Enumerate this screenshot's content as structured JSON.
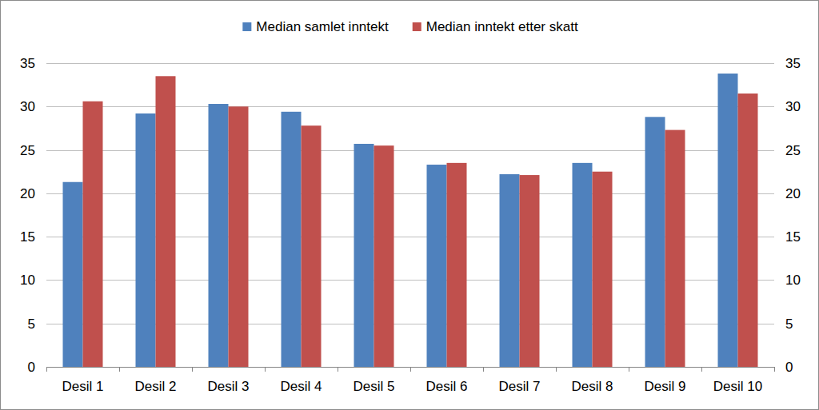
{
  "chart_data": {
    "type": "bar",
    "categories": [
      "Desil 1",
      "Desil 2",
      "Desil 3",
      "Desil 4",
      "Desil 5",
      "Desil 6",
      "Desil 7",
      "Desil 8",
      "Desil 9",
      "Desil 10"
    ],
    "series": [
      {
        "name": "Median samlet inntekt",
        "color": "#4f81bd",
        "values": [
          21.3,
          29.2,
          30.3,
          29.4,
          25.7,
          23.3,
          22.2,
          23.5,
          28.8,
          33.8
        ]
      },
      {
        "name": "Median inntekt etter skatt",
        "color": "#c0504d",
        "values": [
          30.6,
          33.5,
          30.0,
          27.8,
          25.5,
          23.5,
          22.1,
          22.5,
          27.3,
          31.5
        ]
      }
    ],
    "ylim": [
      0,
      35
    ],
    "yticks": [
      0,
      5,
      10,
      15,
      20,
      25,
      30,
      35
    ],
    "y2lim": [
      0,
      35
    ],
    "y2ticks": [
      0,
      5,
      10,
      15,
      20,
      25,
      30,
      35
    ],
    "grid": true,
    "legend": "top"
  }
}
